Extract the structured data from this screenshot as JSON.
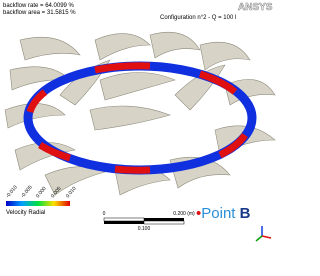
{
  "header": {
    "lines": [
      "backflow rate = 64.0099 %",
      "backflow area = 31.5815 %"
    ],
    "logo": "ANSYS",
    "configuration": "Configuration n°2 - Q = 100 l"
  },
  "colorbar": {
    "ticks": [
      "-0.010",
      "-0.005",
      "0.000",
      "0.005",
      "0.010"
    ],
    "title": "Velocity Radial"
  },
  "scale_bar": {
    "start": "0",
    "end": "0.200 (m)",
    "middle": "0.100"
  },
  "point_label": {
    "bullet": "•",
    "text": "Point ",
    "letter": "B"
  }
}
